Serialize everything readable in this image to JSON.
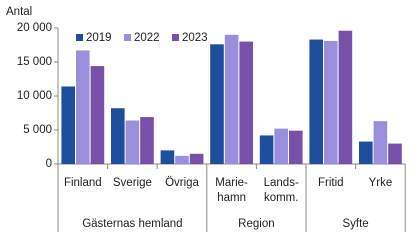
{
  "chart_data": {
    "type": "bar",
    "y_label": "Antal",
    "groups": [
      {
        "name": "Gästernas hemland",
        "categories": [
          "Finland",
          "Sverige",
          "Övriga"
        ]
      },
      {
        "name": "Region",
        "categories": [
          "Marie-\nhamn",
          "Lands-\nkomm."
        ]
      },
      {
        "name": "Syfte",
        "categories": [
          "Fritid",
          "Yrke"
        ]
      }
    ],
    "series": [
      {
        "name": "2019",
        "color": "#1f4e9e",
        "values": [
          11400,
          8200,
          2000,
          17600,
          4200,
          18300,
          3300
        ]
      },
      {
        "name": "2022",
        "color": "#9a8fdc",
        "values": [
          16700,
          6400,
          1200,
          19000,
          5200,
          18100,
          6300
        ]
      },
      {
        "name": "2023",
        "color": "#7850aa",
        "values": [
          14400,
          6900,
          1500,
          18000,
          4900,
          19600,
          3000
        ]
      }
    ],
    "ylim": [
      0,
      20000
    ],
    "yticks": [
      0,
      {
        "value": 5000,
        "label": "5 000"
      },
      {
        "value": 10000,
        "label": "10 000"
      },
      {
        "value": 15000,
        "label": "15 000"
      },
      {
        "value": 20000,
        "label": "20 000"
      }
    ],
    "grid": false,
    "legend": "top"
  }
}
